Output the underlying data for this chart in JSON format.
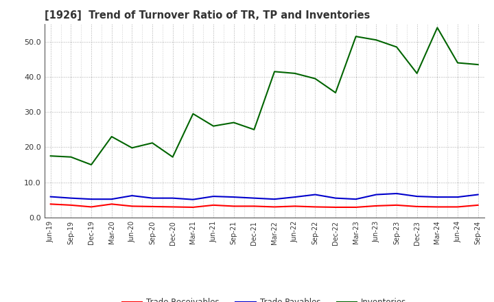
{
  "title": "[1926]  Trend of Turnover Ratio of TR, TP and Inventories",
  "labels": [
    "Jun-19",
    "Sep-19",
    "Dec-19",
    "Mar-20",
    "Jun-20",
    "Sep-20",
    "Dec-20",
    "Mar-21",
    "Jun-21",
    "Sep-21",
    "Dec-21",
    "Mar-22",
    "Jun-22",
    "Sep-22",
    "Dec-22",
    "Mar-23",
    "Jun-23",
    "Sep-23",
    "Dec-23",
    "Mar-24",
    "Jun-24",
    "Sep-24"
  ],
  "trade_receivables": [
    3.8,
    3.5,
    3.0,
    3.8,
    3.2,
    3.1,
    3.0,
    2.9,
    3.5,
    3.2,
    3.2,
    3.0,
    3.2,
    3.0,
    2.9,
    2.9,
    3.3,
    3.5,
    3.1,
    3.0,
    3.0,
    3.5
  ],
  "trade_payables": [
    5.9,
    5.5,
    5.2,
    5.2,
    6.2,
    5.5,
    5.5,
    5.1,
    6.0,
    5.8,
    5.5,
    5.2,
    5.8,
    6.5,
    5.5,
    5.2,
    6.5,
    6.8,
    6.0,
    5.8,
    5.8,
    6.5
  ],
  "inventories": [
    17.5,
    17.2,
    15.0,
    23.0,
    19.8,
    21.2,
    17.2,
    29.5,
    26.0,
    27.0,
    25.0,
    41.5,
    41.0,
    39.5,
    35.5,
    51.5,
    50.5,
    48.5,
    41.0,
    54.0,
    44.0,
    43.5
  ],
  "color_tr": "#ff0000",
  "color_tp": "#0000cc",
  "color_inv": "#006400",
  "ylim": [
    0.0,
    55.0
  ],
  "yticks": [
    0.0,
    10.0,
    20.0,
    30.0,
    40.0,
    50.0
  ],
  "legend_labels": [
    "Trade Receivables",
    "Trade Payables",
    "Inventories"
  ],
  "background_color": "#ffffff",
  "plot_bg_color": "#ffffff",
  "grid_color": "#aaaaaa",
  "title_color": "#333333"
}
